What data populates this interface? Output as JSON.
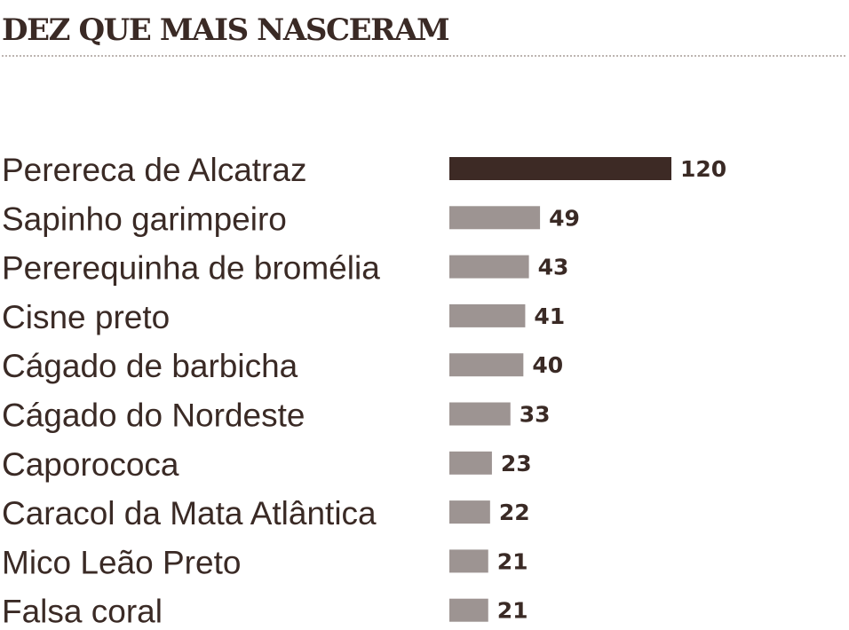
{
  "chart_data": {
    "type": "bar",
    "orientation": "horizontal",
    "title": "DEZ QUE MAIS NASCERAM",
    "categories": [
      "Perereca de Alcatraz",
      "Sapinho garimpeiro",
      "Pererequinha de bromélia",
      "Cisne preto",
      "Cágado de barbicha",
      "Cágado do Nordeste",
      "Caporococa",
      "Caracol da Mata Atlântica",
      "Mico Leão Preto",
      "Falsa coral"
    ],
    "values": [
      120,
      49,
      43,
      41,
      40,
      33,
      23,
      22,
      21,
      21
    ],
    "value_labels": [
      "120",
      "49",
      "43",
      "41",
      "40",
      "33",
      "23",
      "22",
      "21",
      "21"
    ],
    "xlim": [
      0,
      120
    ],
    "grid": false,
    "legend": "none",
    "colors": {
      "highlight": "#3d2a25",
      "bar": "#9d9492",
      "text": "#3a2a25",
      "rule": "#bdb5b1"
    }
  }
}
